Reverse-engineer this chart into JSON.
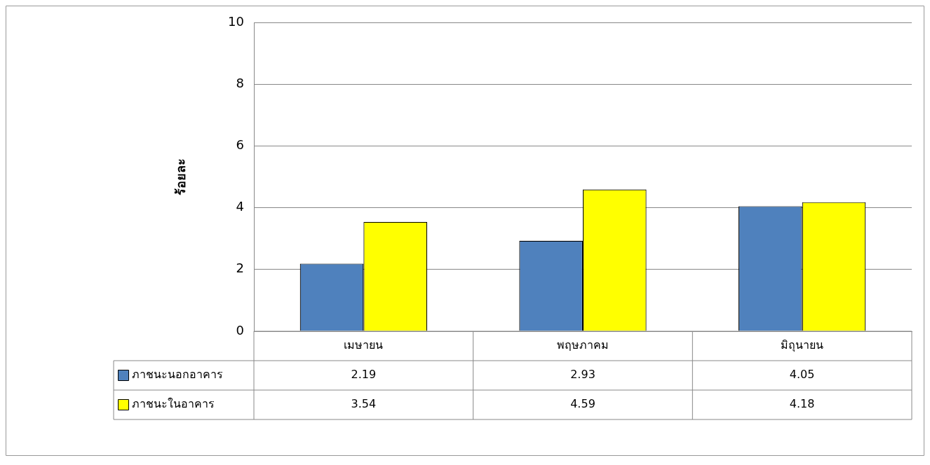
{
  "chart_data": {
    "type": "bar",
    "ylabel": "ร้อยละ",
    "categories": [
      "เมษายน",
      "พฤษภาคม",
      "มิถุนายน"
    ],
    "series": [
      {
        "name": "ภาชนะนอกอาคาร",
        "color": "#4f81bd",
        "values": [
          2.19,
          2.93,
          4.05
        ]
      },
      {
        "name": "ภาชนะในอาคาร",
        "color": "#ffff00",
        "values": [
          3.54,
          4.59,
          4.18
        ]
      }
    ],
    "ylim": [
      0,
      10
    ],
    "yticks": [
      0,
      2,
      4,
      6,
      8,
      10
    ],
    "grid": "y",
    "legend": "bottom",
    "data_labels": true
  }
}
